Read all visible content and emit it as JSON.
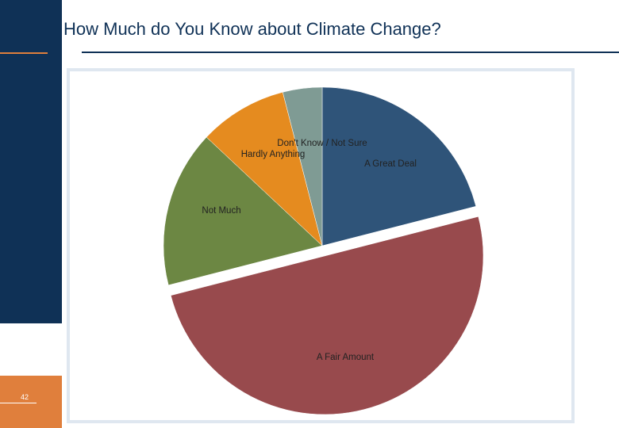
{
  "slide": {
    "title": "How Much do You Know about Climate Change?",
    "page_number": "42"
  },
  "colors": {
    "sidebar": "#0f3156",
    "accent": "#e07f3c",
    "frame": "#dfe7f0"
  },
  "chart_data": {
    "type": "pie",
    "title": "",
    "legend": "none",
    "slices": [
      {
        "label": "A Great Deal",
        "value": 21,
        "color": "#2f5479"
      },
      {
        "label": "A Fair Amount",
        "value": 50,
        "color": "#984a4d"
      },
      {
        "label": "Not Much",
        "value": 16,
        "color": "#6c8743"
      },
      {
        "label": "Hardly Anything",
        "value": 9,
        "color": "#e58b1f"
      },
      {
        "label": "Don't Know / Not Sure",
        "value": 4,
        "color": "#7f9b94"
      }
    ]
  }
}
